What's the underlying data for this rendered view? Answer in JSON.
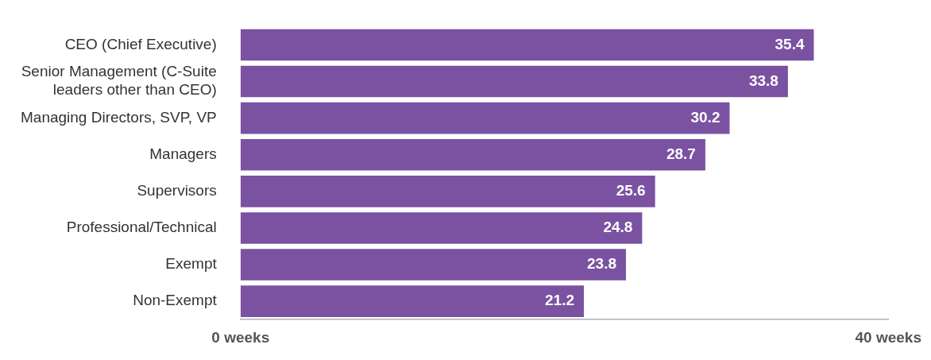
{
  "chart_data": {
    "type": "bar",
    "orientation": "horizontal",
    "categories": [
      "CEO (Chief Executive)",
      "Senior Management (C-Suite leaders other than CEO)",
      "Managing Directors, SVP, VP",
      "Managers",
      "Supervisors",
      "Professional/Technical",
      "Exempt",
      "Non-Exempt"
    ],
    "values": [
      35.4,
      33.8,
      30.2,
      28.7,
      25.6,
      24.8,
      23.8,
      21.2
    ],
    "color": "#7b52a1",
    "xlim": [
      0,
      40
    ],
    "xticks": [
      {
        "value": 0,
        "label": "0 weeks"
      },
      {
        "value": 40,
        "label": "40 weeks"
      }
    ],
    "data_labels": true,
    "grid": false,
    "legend": false
  }
}
